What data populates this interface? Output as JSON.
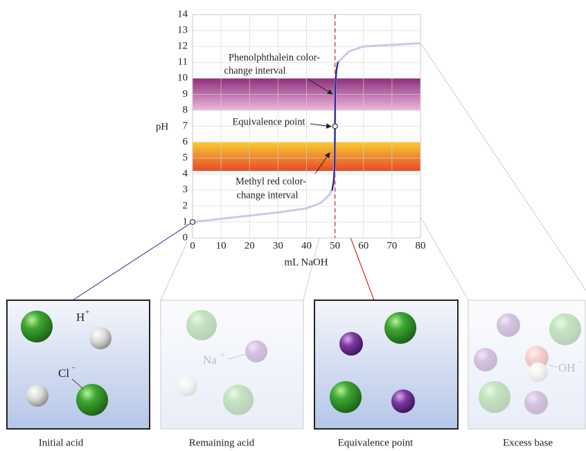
{
  "chart_data": {
    "type": "line",
    "x_label": "mL NaOH",
    "y_label": "pH",
    "x": [
      0,
      10,
      20,
      30,
      40,
      45,
      48,
      49,
      49.5,
      49.9,
      50,
      50.1,
      50.5,
      51,
      55,
      60,
      70,
      80
    ],
    "values": [
      1.0,
      1.2,
      1.4,
      1.6,
      1.85,
      2.2,
      2.7,
      3.0,
      3.5,
      4.5,
      7,
      9.5,
      10.5,
      11.0,
      11.7,
      12.0,
      12.1,
      12.2
    ],
    "color": "#c8c8ea",
    "steep_color": "#2a2a96",
    "xlim": [
      0,
      80
    ],
    "ylim": [
      0,
      14
    ],
    "xticks": [
      0,
      10,
      20,
      30,
      40,
      50,
      60,
      70,
      80
    ],
    "yticks": [
      0,
      1,
      2,
      3,
      4,
      5,
      6,
      7,
      8,
      9,
      10,
      11,
      12,
      13,
      14
    ],
    "grid": true,
    "bands": [
      {
        "label_lines": [
          "Phenolphthalein color-",
          "change interval"
        ],
        "range": [
          8,
          10
        ],
        "colors": [
          "#8e2f7e",
          "#ecb8da"
        ]
      },
      {
        "label_lines": [
          "Methyl red color-",
          "change interval"
        ],
        "range": [
          4.2,
          6
        ],
        "colors": [
          "#f8cc34",
          "#e64a2a"
        ]
      }
    ],
    "equivalence_point": {
      "label": "Equivalence point",
      "x": 50,
      "y": 7,
      "color": "#d03a3a"
    },
    "initial_point": {
      "x": 0,
      "y": 1
    }
  },
  "panels": [
    {
      "label": "Initial acid",
      "active": true,
      "ions": [
        {
          "base": "H",
          "sup": "+"
        },
        {
          "base": "Cl",
          "sup": "−"
        }
      ]
    },
    {
      "label": "Remaining acid",
      "active": false,
      "ions": [
        {
          "base": "Na",
          "sup": "+"
        }
      ]
    },
    {
      "label": "Equivalence point",
      "active": true,
      "ions": []
    },
    {
      "label": "Excess base",
      "active": false,
      "ions": [
        {
          "base": "OH",
          "sup": "−"
        }
      ]
    }
  ]
}
